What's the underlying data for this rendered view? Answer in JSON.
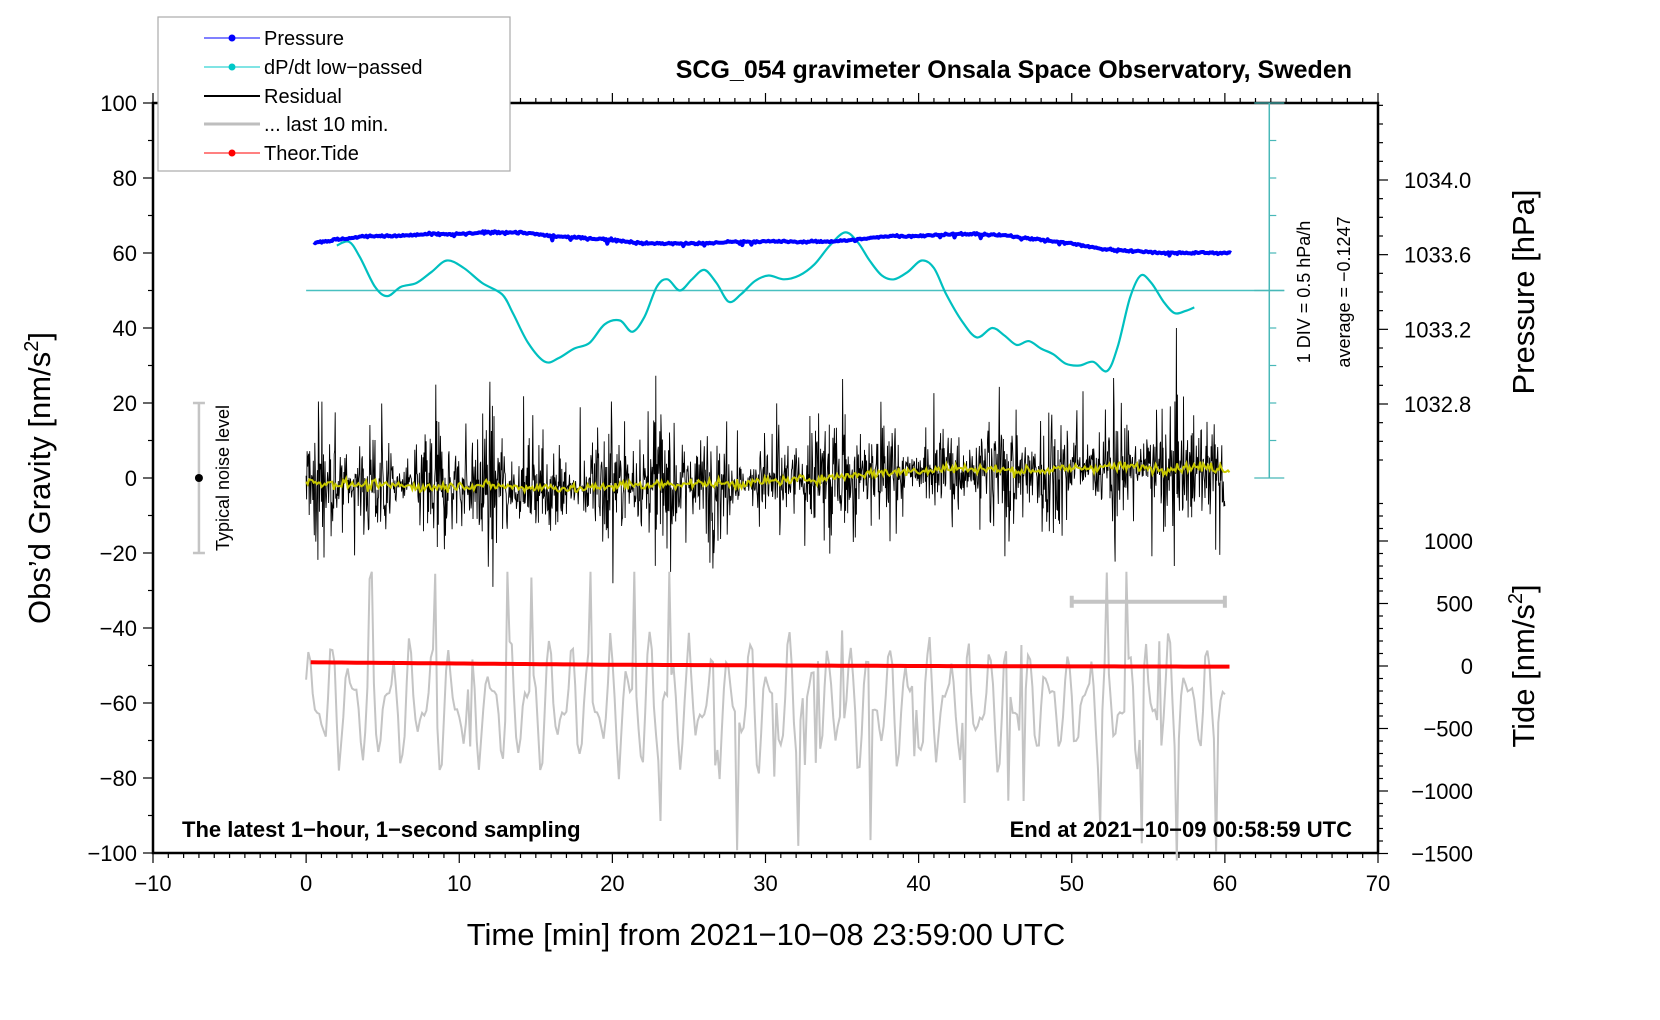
{
  "chart_data": {
    "type": "line",
    "title": "SCG_054 gravimeter Onsala Space Observatory, Sweden",
    "xlabel": "Time [min] from 2021−10−08 23:59:00 UTC",
    "ylabel_left": "Obs’d Gravity [nm/s",
    "ylabel_left_sup": "2",
    "ylabel_left_end": "]",
    "ylabel_right_pressure": "Pressure [hPa]",
    "ylabel_right_tide": "Tide [nm/s",
    "ylabel_right_tide_sup": "2",
    "ylabel_right_tide_end": "]",
    "xlim": [
      -10,
      70
    ],
    "ylim_left": [
      -100,
      100
    ],
    "x_ticks": [
      -10,
      0,
      10,
      20,
      30,
      40,
      50,
      60,
      70
    ],
    "x_tick_labels": [
      "−10",
      "0",
      "10",
      "20",
      "30",
      "40",
      "50",
      "60",
      "70"
    ],
    "y_left_ticks": [
      100,
      80,
      60,
      40,
      20,
      0,
      -20,
      -40,
      -60,
      -80,
      -100
    ],
    "y_left_tick_labels": [
      "100",
      "80",
      "60",
      "40",
      "20",
      "0",
      "−20",
      "−40",
      "−60",
      "−80",
      "−100"
    ],
    "pressure_axis": {
      "ticks": [
        1034.0,
        1033.6,
        1033.2,
        1032.8
      ],
      "tick_labels": [
        "1034.0",
        "1033.6",
        "1033.2",
        "1032.8"
      ]
    },
    "tide_axis": {
      "ticks": [
        1000,
        500,
        0,
        -500,
        -1000,
        -1500
      ],
      "tick_labels": [
        "1000",
        "500",
        "0",
        "−500",
        "−1000",
        "−1500"
      ]
    },
    "dpdt_scale": {
      "label_div": "1 DIV = 0.5 hPa/h",
      "label_avg": "average = −0.1247",
      "average": -0.1247,
      "hpa_per_div": 0.5
    },
    "noise_bar": {
      "label": "Typical noise level",
      "center": 0,
      "range": [
        -20,
        20
      ],
      "x": -7
    },
    "last10_bar": {
      "x_range": [
        50,
        60
      ],
      "y": -33
    },
    "annotations": {
      "bottom_left": "The latest 1−hour, 1−second sampling",
      "bottom_right": "End at 2021−10−09 00:58:59 UTC"
    },
    "legend": {
      "placement": "top-left",
      "entries": [
        {
          "label": "Pressure",
          "color": "#0000ff",
          "marker": "dot"
        },
        {
          "label": "dP/dt low−passed",
          "color": "#00c8c8",
          "marker": "dot"
        },
        {
          "label": "Residual",
          "color": "#000000",
          "marker": "line"
        },
        {
          "label": "... last 10 min.",
          "color": "#bebebe",
          "marker": "thick-line"
        },
        {
          "label": "Theor.Tide",
          "color": "#ff0000",
          "marker": "dot"
        }
      ]
    },
    "series": [
      {
        "name": "Pressure",
        "unit": "hPa",
        "color": "#0000ff",
        "x": [
          0,
          2,
          4,
          6,
          8,
          10,
          12,
          14,
          16,
          18,
          20,
          22,
          24,
          26,
          28,
          30,
          32,
          34,
          36,
          38,
          40,
          42,
          44,
          46,
          48,
          50,
          52,
          54,
          56,
          58,
          60
        ],
        "values": [
          1033.66,
          1033.68,
          1033.7,
          1033.7,
          1033.71,
          1033.71,
          1033.72,
          1033.72,
          1033.7,
          1033.69,
          1033.68,
          1033.66,
          1033.66,
          1033.66,
          1033.67,
          1033.67,
          1033.67,
          1033.67,
          1033.68,
          1033.7,
          1033.7,
          1033.71,
          1033.71,
          1033.7,
          1033.68,
          1033.66,
          1033.63,
          1033.62,
          1033.61,
          1033.61,
          1033.61
        ]
      },
      {
        "name": "dP/dt low-passed",
        "unit": "gravity-axis units (center 50 = 0 hPa/h offset)",
        "color": "#00c8c8",
        "x": [
          2,
          2.8,
          3.5,
          4.5,
          5.3,
          6.2,
          7.2,
          8.2,
          9.2,
          10.3,
          11.5,
          12.8,
          13.5,
          14.5,
          15.6,
          16.5,
          17.5,
          18.5,
          19.5,
          20.5,
          21.3,
          22.1,
          22.9,
          23.6,
          24.4,
          25.2,
          26.0,
          26.8,
          27.6,
          28.4,
          29.3,
          30.2,
          31.2,
          32.2,
          33.2,
          34.2,
          35.2,
          36.0,
          36.8,
          37.6,
          38.4,
          39.3,
          40.2,
          41.0,
          41.8,
          42.8,
          43.8,
          44.8,
          45.6,
          46.4,
          47.2,
          48.0,
          48.8,
          49.6,
          50.5,
          51.4,
          52.3,
          53.0,
          53.8,
          54.5,
          55.2,
          56.0,
          56.7,
          57.4,
          58.0
        ],
        "values": [
          62,
          63,
          59,
          51,
          48.5,
          51,
          52,
          55,
          58,
          56,
          52,
          49,
          44,
          36,
          31,
          32,
          34.5,
          36,
          41,
          42,
          39,
          43,
          51,
          53,
          50,
          53,
          55.5,
          52,
          47,
          49,
          52.5,
          54,
          53,
          54,
          57,
          62,
          65.5,
          63,
          58,
          54,
          53,
          55,
          58,
          56,
          49,
          42,
          37.5,
          40,
          38,
          35.5,
          36.5,
          34.5,
          33,
          30.5,
          30,
          31,
          28.5,
          35,
          48,
          54,
          52,
          47,
          44,
          44.5,
          45.5
        ]
      },
      {
        "name": "Residual",
        "unit": "nm/s^2",
        "color": "#000000",
        "x_range": [
          0,
          60
        ],
        "envelope_max": 40,
        "envelope_min": -45,
        "typical_spread": 12
      },
      {
        "name": "Residual smoothed",
        "unit": "nm/s^2",
        "color": "#c8c800",
        "x": [
          0,
          2,
          4,
          6,
          8,
          10,
          12,
          14,
          16,
          18,
          20,
          22,
          24,
          26,
          28,
          30,
          32,
          34,
          36,
          38,
          40,
          42,
          44,
          46,
          48,
          50,
          52,
          54,
          56,
          58,
          60
        ],
        "values": [
          -1,
          -1.5,
          -2,
          -2,
          -2.5,
          -2,
          -2,
          -2.5,
          -2.5,
          -3,
          -2,
          -2,
          -1.5,
          -1.5,
          -1.5,
          -1,
          -0.5,
          0,
          1,
          1.5,
          2,
          2.5,
          2.5,
          2,
          2,
          2.5,
          3,
          3,
          2.5,
          3,
          2.5
        ]
      },
      {
        "name": "... last 10 min.",
        "unit": "nm/s^2 (residual, 6x time-stretched)",
        "color": "#bebebe",
        "x_range": [
          0,
          60
        ],
        "baseline": -60,
        "amplitude": 15
      },
      {
        "name": "Theor.Tide",
        "unit": "nm/s^2 (tide axis)",
        "color": "#ff0000",
        "x": [
          0,
          10,
          20,
          30,
          40,
          50,
          60
        ],
        "values": [
          30,
          20,
          10,
          5,
          0,
          -3,
          -5
        ]
      }
    ]
  }
}
